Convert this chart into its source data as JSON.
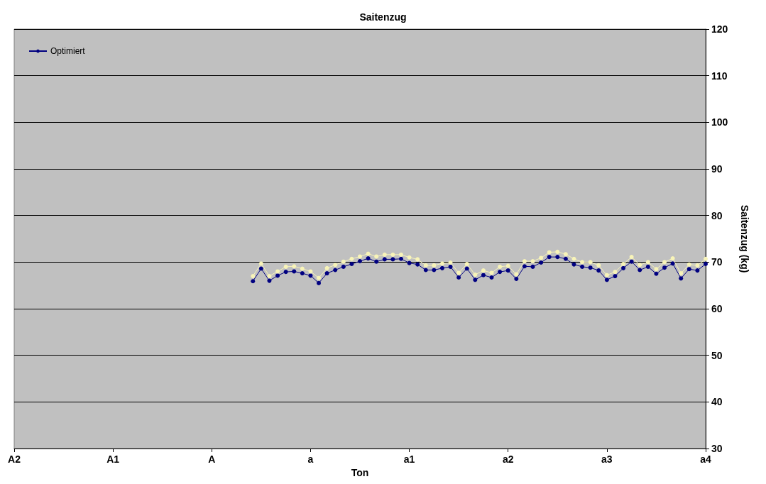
{
  "chart_data": {
    "type": "line",
    "title": "Saitenzug",
    "xlabel": "Ton",
    "ylabel": "Saitenzug (kg)",
    "categories": [
      "A2",
      null,
      null,
      null,
      null,
      null,
      null,
      null,
      null,
      null,
      null,
      null,
      "A1",
      null,
      null,
      null,
      null,
      null,
      null,
      null,
      null,
      null,
      null,
      null,
      "A",
      null,
      null,
      null,
      null,
      null,
      null,
      null,
      null,
      null,
      null,
      null,
      "a",
      null,
      null,
      null,
      null,
      null,
      null,
      null,
      null,
      null,
      null,
      null,
      "a1",
      null,
      null,
      null,
      null,
      null,
      null,
      null,
      null,
      null,
      null,
      null,
      "a2",
      null,
      null,
      null,
      null,
      null,
      null,
      null,
      null,
      null,
      null,
      null,
      "a3",
      null,
      null,
      null,
      null,
      null,
      null,
      null,
      null,
      null,
      null,
      null,
      "a4"
    ],
    "series": [
      {
        "name": "Optimiert",
        "color": "#000080",
        "values": [
          null,
          null,
          null,
          null,
          null,
          null,
          null,
          null,
          null,
          null,
          null,
          null,
          null,
          null,
          null,
          null,
          null,
          null,
          null,
          null,
          null,
          null,
          null,
          null,
          null,
          null,
          null,
          null,
          null,
          65.9,
          68.6,
          66.0,
          67.1,
          67.9,
          68.0,
          67.6,
          67.1,
          65.5,
          67.6,
          68.3,
          69.0,
          69.6,
          70.2,
          70.8,
          70.1,
          70.6,
          70.6,
          70.7,
          69.8,
          69.5,
          68.3,
          68.3,
          68.7,
          69.0,
          66.7,
          68.6,
          66.2,
          67.2,
          66.7,
          67.9,
          68.2,
          66.4,
          69.1,
          69.0,
          69.9,
          71.1,
          71.1,
          70.7,
          69.5,
          69.0,
          68.8,
          68.2,
          66.2,
          67.0,
          68.7,
          70.1,
          68.3,
          69.0,
          67.5,
          68.8,
          69.7,
          66.5,
          68.5,
          68.2,
          69.6
        ]
      },
      {
        "color": "#f8f4b8",
        "values": [
          null,
          null,
          null,
          null,
          null,
          null,
          null,
          null,
          null,
          null,
          null,
          null,
          null,
          null,
          null,
          null,
          null,
          null,
          null,
          null,
          null,
          null,
          null,
          null,
          null,
          null,
          null,
          null,
          null,
          67.0,
          69.7,
          67.0,
          68.0,
          69.0,
          69.1,
          68.6,
          68.0,
          66.6,
          68.7,
          69.4,
          70.1,
          70.7,
          71.2,
          71.8,
          71.2,
          71.6,
          71.6,
          71.6,
          71.0,
          70.6,
          69.3,
          69.3,
          69.7,
          69.9,
          67.7,
          69.6,
          67.3,
          68.2,
          67.7,
          69.0,
          69.2,
          67.4,
          70.2,
          70.2,
          70.9,
          72.1,
          72.2,
          71.7,
          70.7,
          70.0,
          70.0,
          69.3,
          67.2,
          67.9,
          69.6,
          71.1,
          69.4,
          70.0,
          68.5,
          70.0,
          70.8,
          67.6,
          69.5,
          69.3,
          70.7
        ]
      }
    ],
    "ylim": [
      30,
      120
    ],
    "yticks": [
      30,
      40,
      50,
      60,
      70,
      80,
      90,
      100,
      110,
      120
    ],
    "grid": "y",
    "legend": "top left",
    "marker": "circle",
    "line_style": "solid"
  }
}
